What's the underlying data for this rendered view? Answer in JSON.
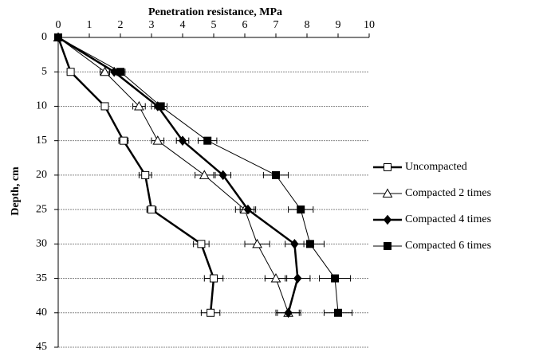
{
  "chart_data": {
    "type": "line",
    "title": "Penetration resistance, MPa",
    "y_label": "Depth, cm",
    "y": [
      0,
      5,
      10,
      15,
      20,
      25,
      30,
      35,
      40
    ],
    "xlim": [
      0,
      10
    ],
    "xticks": [
      0,
      1,
      2,
      3,
      4,
      5,
      6,
      7,
      8,
      9,
      10
    ],
    "ylim": [
      0,
      45
    ],
    "yticks": [
      0,
      5,
      10,
      15,
      20,
      25,
      30,
      35,
      40,
      45
    ],
    "y_inverted": true,
    "grid": true,
    "legend": "right",
    "series": [
      {
        "name": "Uncompacted",
        "color": "#000000",
        "marker": "square-open",
        "line_width": 2.5,
        "values": [
          0,
          0.4,
          1.5,
          2.1,
          2.8,
          3.0,
          4.6,
          5.0,
          4.9
        ],
        "errors": [
          0,
          0.1,
          0.1,
          0.15,
          0.2,
          0.15,
          0.25,
          0.3,
          0.3
        ]
      },
      {
        "name": "Compacted 2 times",
        "color": "#000000",
        "marker": "triangle-open",
        "line_width": 1,
        "values": [
          0,
          1.5,
          2.6,
          3.2,
          4.7,
          6.0,
          6.4,
          7.0,
          7.4
        ],
        "errors": [
          0,
          0.15,
          0.2,
          0.2,
          0.3,
          0.3,
          0.4,
          0.35,
          0.4
        ]
      },
      {
        "name": "Compacted 4 times",
        "color": "#000000",
        "marker": "diamond",
        "line_width": 2.5,
        "values": [
          0,
          1.8,
          3.2,
          4.0,
          5.3,
          6.1,
          7.6,
          7.7,
          7.4
        ],
        "errors": [
          0,
          0.15,
          0.2,
          0.2,
          0.25,
          0.25,
          0.3,
          0.4,
          0.35
        ]
      },
      {
        "name": "Compacted 6 times",
        "color": "#000000",
        "marker": "square",
        "line_width": 1,
        "values": [
          0,
          2.0,
          3.3,
          4.8,
          7.0,
          7.8,
          8.1,
          8.9,
          9.0
        ],
        "errors": [
          0,
          0.15,
          0.2,
          0.3,
          0.4,
          0.4,
          0.45,
          0.5,
          0.45
        ]
      }
    ]
  }
}
